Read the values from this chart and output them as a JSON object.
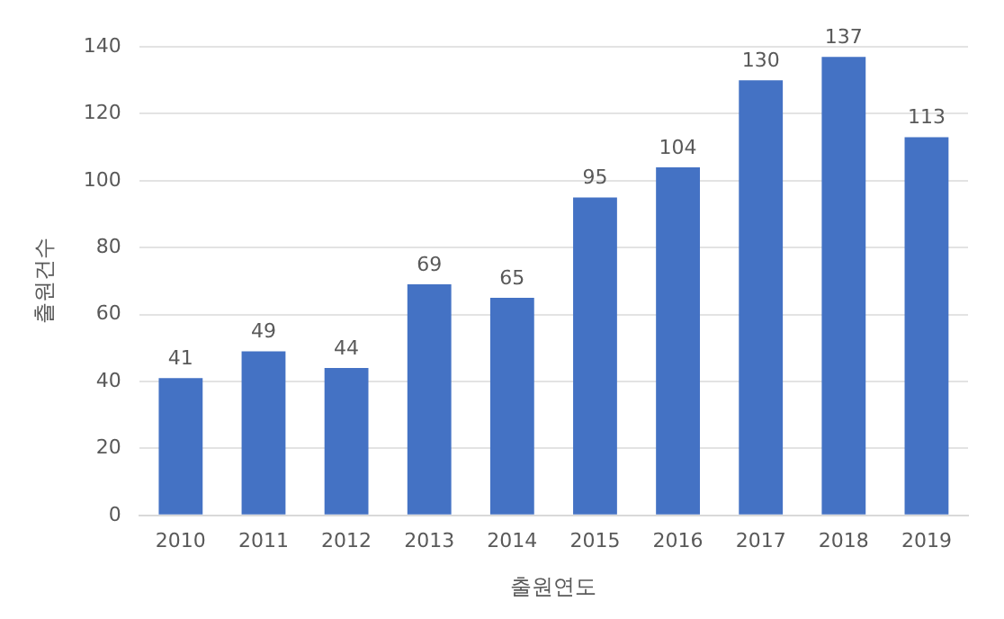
{
  "chart_data": {
    "type": "bar",
    "xlabel": "출원연도",
    "ylabel": "출원건수",
    "categories": [
      "2010",
      "2011",
      "2012",
      "2013",
      "2014",
      "2015",
      "2016",
      "2017",
      "2018",
      "2019"
    ],
    "values": [
      41,
      49,
      44,
      69,
      65,
      95,
      104,
      130,
      137,
      113
    ],
    "color": "#4472c4",
    "ylim": [
      0,
      140
    ],
    "yticks": [
      0,
      20,
      40,
      60,
      80,
      100,
      120,
      140
    ],
    "grid": "y",
    "legend": false,
    "data_labels": true
  }
}
